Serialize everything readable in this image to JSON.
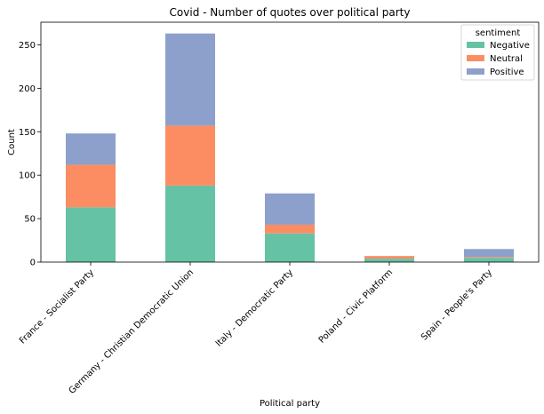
{
  "chart_data": {
    "type": "bar",
    "stacked": true,
    "title": "Covid - Number of quotes over political party",
    "xlabel": "Political party",
    "ylabel": "Count",
    "ylim": [
      0,
      276
    ],
    "yticks": [
      0,
      50,
      100,
      150,
      200,
      250
    ],
    "categories": [
      "France - Socialist Party",
      "Germany - Christian Democratic Union",
      "Italy - Democratic Party",
      "Poland - Civic Platform",
      "Spain - People's Party"
    ],
    "legend_title": "sentiment",
    "legend_position": "top-right",
    "series": [
      {
        "name": "Negative",
        "color": "#66c2a5",
        "values": [
          63,
          88,
          33,
          4,
          5
        ]
      },
      {
        "name": "Neutral",
        "color": "#fc8d62",
        "values": [
          49,
          69,
          10,
          3,
          1
        ]
      },
      {
        "name": "Positive",
        "color": "#8da0cb",
        "values": [
          36,
          106,
          36,
          0,
          9
        ]
      }
    ],
    "grid": false
  }
}
